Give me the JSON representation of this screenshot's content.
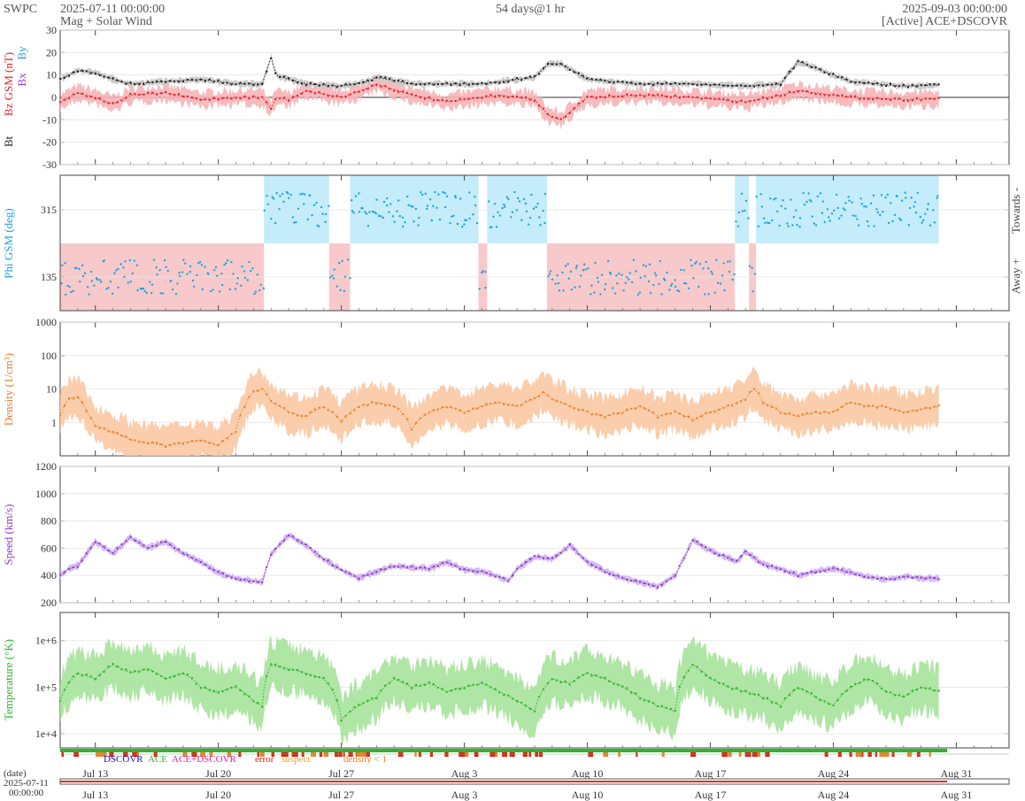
{
  "header": {
    "org": "SWPC",
    "start": "2025-07-11 00:00:00",
    "title": "Mag + Solar Wind",
    "span": "54 days@1 hr",
    "end": "2025-09-03 00:00:00",
    "source": "[Active] ACE+DSCOVR"
  },
  "chart_data": [
    {
      "type": "line",
      "panel": "magnetic field",
      "ylabel_parts": [
        "Bt",
        "Bz GSM (nT)",
        "Bx",
        "By"
      ],
      "ylim": [
        -30,
        30
      ],
      "yticks": [
        30,
        20,
        10,
        0,
        -10,
        -20,
        -30
      ],
      "series": [
        {
          "name": "Bt",
          "color": "#222222",
          "x": [
            0,
            1,
            2,
            3,
            4,
            6,
            8,
            10,
            11.5,
            12,
            12.3,
            13,
            14,
            16,
            17.5,
            18,
            20,
            22,
            24,
            25,
            27,
            27.8,
            28.5,
            30,
            33,
            36,
            39,
            41,
            42,
            45,
            48,
            52,
            54
          ],
          "values": [
            8,
            12,
            11,
            8,
            6,
            7,
            8,
            6,
            6,
            18,
            10,
            8,
            6,
            5,
            7,
            9,
            6,
            6,
            6,
            7,
            9,
            15,
            15,
            8,
            6,
            6,
            5,
            6,
            16,
            7,
            5,
            6,
            7
          ]
        },
        {
          "name": "Bz",
          "color": "#e8202a",
          "x": [
            0,
            1,
            2,
            3,
            4,
            6,
            8,
            10,
            11.5,
            12,
            12.3,
            13,
            14,
            16,
            17.5,
            18,
            20,
            22,
            24,
            25,
            27,
            27.8,
            28.5,
            30,
            33,
            36,
            39,
            41,
            42,
            45,
            48,
            52,
            54
          ],
          "values": [
            -2,
            2,
            0,
            -3,
            1,
            2,
            -1,
            0,
            0,
            -5,
            0,
            -1,
            3,
            0,
            4,
            6,
            1,
            -2,
            0,
            1,
            -1,
            -8,
            -10,
            0,
            1,
            0,
            -2,
            1,
            3,
            0,
            -1,
            0,
            -1
          ]
        }
      ]
    },
    {
      "type": "scatter",
      "panel": "phi angle",
      "ylabel": "Phi GSM (deg)",
      "yticks": [
        315,
        135
      ],
      "right_labels": [
        "Towards -",
        "Away +"
      ],
      "sector_colors": {
        "towards": "#c4ecfb",
        "away": "#f8c9cb"
      },
      "sectors": [
        {
          "from": 0,
          "to": 11.6,
          "sector": "away"
        },
        {
          "from": 11.6,
          "to": 15.3,
          "sector": "towards"
        },
        {
          "from": 15.3,
          "to": 16.5,
          "sector": "away"
        },
        {
          "from": 16.5,
          "to": 23.8,
          "sector": "towards"
        },
        {
          "from": 23.8,
          "to": 24.3,
          "sector": "away"
        },
        {
          "from": 24.3,
          "to": 27.7,
          "sector": "towards"
        },
        {
          "from": 27.7,
          "to": 38.4,
          "sector": "away"
        },
        {
          "from": 38.4,
          "to": 39.2,
          "sector": "towards"
        },
        {
          "from": 39.2,
          "to": 39.6,
          "sector": "away"
        },
        {
          "from": 39.6,
          "to": 50.0,
          "sector": "towards"
        }
      ],
      "color": "#1aa3e0"
    },
    {
      "type": "line",
      "panel": "density",
      "ylabel": "Density (1/cm³)",
      "yscale": "log",
      "ylim": [
        0.1,
        1000
      ],
      "yticks": [
        "1000",
        "100",
        "10",
        "1"
      ],
      "color": "#f07f2b",
      "band_color": "#f9c9a3",
      "x": [
        0,
        0.5,
        1,
        1.5,
        2,
        3,
        4,
        5,
        6,
        7,
        8,
        9,
        10,
        10.5,
        11,
        11.5,
        12,
        13,
        14,
        15,
        16,
        16.5,
        17,
        18,
        19,
        20,
        21,
        22,
        23,
        24,
        25,
        26,
        27,
        27.5,
        28,
        29,
        30,
        31,
        32,
        33,
        34,
        35,
        36,
        37,
        38,
        39,
        39.5,
        40,
        41,
        42,
        43,
        44,
        45,
        46,
        47,
        48,
        49,
        50
      ],
      "values": [
        1.5,
        5,
        6,
        2,
        0.8,
        0.5,
        0.3,
        0.25,
        0.2,
        0.25,
        0.3,
        0.2,
        0.5,
        3,
        8,
        10,
        4,
        2,
        1.5,
        3,
        1,
        2,
        3,
        4,
        3,
        0.6,
        2,
        3,
        2,
        3,
        4,
        3,
        5,
        8,
        5,
        3,
        2,
        1.5,
        2,
        3,
        1.5,
        2,
        1.2,
        2,
        3,
        5,
        10,
        4,
        2,
        1.5,
        2,
        2,
        4,
        3,
        3,
        2,
        2.5,
        3
      ]
    },
    {
      "type": "line",
      "panel": "speed",
      "ylabel": "Speed (km/s)",
      "ylim": [
        200,
        1200
      ],
      "yticks": [
        1200,
        1000,
        800,
        600,
        400,
        200
      ],
      "color": "#8b3fd0",
      "band_color": "#d3b4f0",
      "x": [
        0,
        0.5,
        1,
        2,
        3,
        4,
        5,
        6,
        7,
        8,
        9,
        10,
        11.5,
        12,
        13,
        14,
        15,
        16,
        17,
        18,
        19,
        20,
        21,
        22,
        23,
        24,
        25,
        25.5,
        26,
        27,
        28,
        29,
        30,
        31,
        32,
        33,
        34,
        35,
        36,
        37,
        37.8,
        38.5,
        39,
        40,
        41,
        42,
        43,
        44,
        45,
        46,
        47,
        48,
        49,
        50
      ],
      "values": [
        400,
        450,
        470,
        650,
        560,
        680,
        600,
        650,
        560,
        500,
        420,
        380,
        350,
        560,
        700,
        620,
        520,
        440,
        380,
        430,
        470,
        460,
        450,
        500,
        440,
        430,
        390,
        360,
        450,
        540,
        520,
        620,
        500,
        430,
        380,
        350,
        320,
        400,
        660,
        580,
        540,
        500,
        580,
        480,
        450,
        400,
        430,
        450,
        420,
        390,
        370,
        390,
        380,
        380
      ]
    },
    {
      "type": "line",
      "panel": "temperature",
      "ylabel": "Temperature (°K)",
      "yscale": "log",
      "ylim": [
        5000,
        4000000
      ],
      "yticks": [
        "1e+6",
        "1e+5",
        "1e+4"
      ],
      "color": "#2db52d",
      "band_color": "#a6e29b",
      "x": [
        0,
        1,
        2,
        3,
        4,
        5,
        6,
        7,
        8,
        9,
        10,
        11,
        11.5,
        12,
        13,
        14,
        15,
        16,
        17,
        18,
        19,
        20,
        21,
        22,
        23,
        24,
        25,
        26,
        27,
        28,
        29,
        30,
        31,
        32,
        33,
        34,
        35,
        36,
        37,
        38,
        39,
        40,
        41,
        42,
        43,
        44,
        45,
        46,
        47,
        48,
        49,
        50
      ],
      "values": [
        50000,
        200000,
        150000,
        300000,
        200000,
        250000,
        150000,
        200000,
        100000,
        80000,
        100000,
        50000,
        40000,
        300000,
        250000,
        200000,
        150000,
        20000,
        40000,
        60000,
        150000,
        100000,
        120000,
        80000,
        100000,
        120000,
        80000,
        50000,
        30000,
        150000,
        120000,
        200000,
        150000,
        100000,
        60000,
        40000,
        30000,
        300000,
        150000,
        100000,
        80000,
        60000,
        40000,
        100000,
        60000,
        40000,
        100000,
        150000,
        80000,
        60000,
        100000,
        80000
      ]
    },
    {
      "type": "timeline",
      "panel": "source flags",
      "legend": [
        {
          "label": "DSCOVR",
          "color": "#1414b4"
        },
        {
          "label": "ACE",
          "color": "#2db52d"
        },
        {
          "label": "ACE+DSCOVR",
          "color": "#e020a0"
        },
        {
          "label": "error",
          "color": "#e02010"
        },
        {
          "label": "suspect",
          "color": "#f0a020"
        },
        {
          "label": "density < 1",
          "color": "#f07f2b"
        }
      ]
    }
  ],
  "xaxis": {
    "days_total": 54,
    "ticks": [
      {
        "day": 2,
        "label": "Jul 13"
      },
      {
        "day": 9,
        "label": "Jul 20"
      },
      {
        "day": 16,
        "label": "Jul 27"
      },
      {
        "day": 23,
        "label": "Aug 3"
      },
      {
        "day": 30,
        "label": "Aug 10"
      },
      {
        "day": 37,
        "label": "Aug 17"
      },
      {
        "day": 44,
        "label": "Aug 24"
      },
      {
        "day": 51,
        "label": "Aug 31"
      }
    ],
    "date_label": "(date)",
    "date_start": "2025-07-11",
    "time_start": "00:00:00"
  }
}
